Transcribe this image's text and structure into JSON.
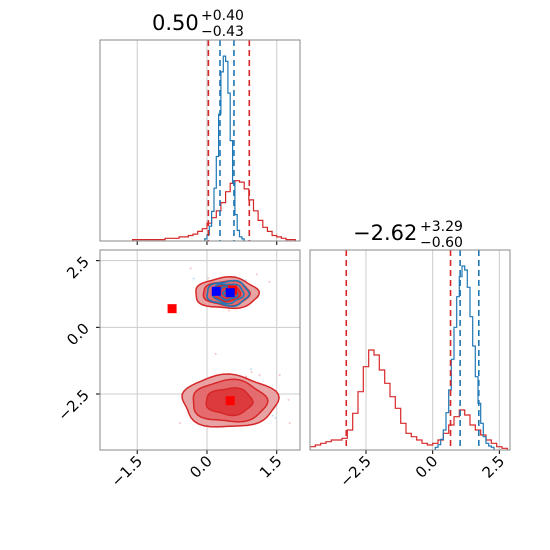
{
  "chart_data": {
    "type": "corner",
    "colors": {
      "red": "#d62728",
      "blue": "#1f77b4",
      "red_fill": "#e8a3a4",
      "red_core": "#dc3a3c",
      "blue_marker": "#0000ff",
      "red_marker": "#ff0000",
      "grid": "#cccccc",
      "axis": "#888888"
    },
    "params": [
      {
        "title_value": "0.50",
        "title_plus": "+0.40",
        "title_minus": "−0.43",
        "range": [
          -2.3,
          2.0
        ],
        "ticks": [
          -1.5,
          0.0,
          1.5
        ],
        "tick_labels": [
          "−1.5",
          "0.0",
          "1.5"
        ]
      },
      {
        "title_value": "−2.62",
        "title_plus": "+3.29",
        "title_minus": "−0.60",
        "range": [
          -4.6,
          2.9
        ],
        "ticks": [
          -2.5,
          0.0,
          2.5
        ],
        "tick_labels": [
          "−2.5",
          "0.0",
          "2.5"
        ]
      }
    ],
    "panel_top_left": {
      "red_hist": {
        "bin_edges_from": -1.6,
        "bin_width": 0.1,
        "counts": [
          1,
          1,
          1,
          1,
          1,
          1,
          1,
          2,
          2,
          2,
          3,
          3,
          4,
          5,
          7,
          9,
          13,
          17,
          22,
          28,
          36,
          42,
          44,
          43,
          38,
          30,
          22,
          15,
          10,
          7,
          4,
          3,
          2,
          1,
          1
        ]
      },
      "blue_hist": {
        "bin_edges_from": -0.05,
        "bin_width": 0.05,
        "counts": [
          2,
          6,
          14,
          28,
          50,
          80,
          120,
          160,
          175,
          170,
          140,
          95,
          55,
          25,
          10,
          4,
          2
        ]
      },
      "red_quantile_lines": [
        0.03,
        0.91
      ],
      "blue_quantile_lines": [
        0.28,
        0.58
      ]
    },
    "panel_bottom_right": {
      "red_hist": {
        "bin_edges_from": -4.6,
        "bin_width": 0.2,
        "counts": [
          2,
          3,
          4,
          5,
          6,
          6,
          7,
          12,
          22,
          35,
          50,
          60,
          57,
          48,
          40,
          32,
          25,
          16,
          10,
          8,
          6,
          4,
          3,
          4,
          6,
          10,
          15,
          20,
          24,
          21,
          15,
          12,
          9,
          6,
          4,
          2,
          1
        ]
      },
      "blue_hist": {
        "bin_edges_from": 0.1,
        "bin_width": 0.1,
        "counts": [
          2,
          4,
          8,
          15,
          28,
          45,
          68,
          92,
          115,
          130,
          138,
          135,
          122,
          100,
          78,
          55,
          35,
          20,
          10,
          5,
          3,
          2
        ]
      },
      "red_quantile_lines": [
        -3.24,
        0.67
      ],
      "blue_quantile_lines": [
        1.03,
        1.73
      ]
    },
    "panel_scatter": {
      "red_markers": [
        [
          -0.75,
          0.7
        ],
        [
          0.55,
          1.4
        ],
        [
          0.5,
          -2.75
        ]
      ],
      "blue_markers": [
        [
          0.5,
          1.3
        ],
        [
          0.2,
          1.35
        ]
      ],
      "red_blobs": [
        {
          "cx": 0.48,
          "cy": -2.78,
          "levels": [
            [
              1.02,
              0.98
            ],
            [
              0.8,
              0.78
            ],
            [
              0.5,
              0.5
            ]
          ]
        },
        {
          "cx": 0.42,
          "cy": 1.28,
          "levels": [
            [
              0.68,
              0.58
            ],
            [
              0.5,
              0.46
            ],
            [
              0.3,
              0.3
            ]
          ]
        }
      ],
      "blue_blob": {
        "cx": 0.45,
        "cy": 1.28,
        "levels": [
          [
            0.45,
            0.46
          ],
          [
            0.33,
            0.36
          ],
          [
            0.2,
            0.24
          ],
          [
            0.1,
            0.12
          ]
        ]
      }
    }
  }
}
